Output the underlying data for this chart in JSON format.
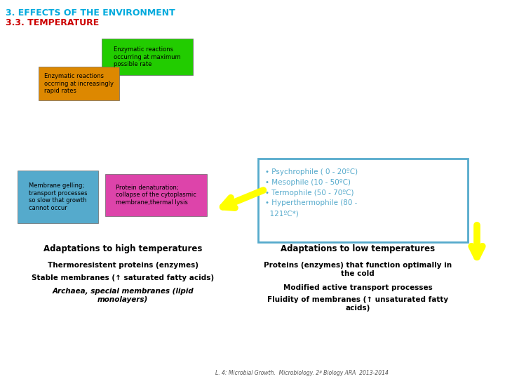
{
  "title1": "3. EFFECTS OF THE ENVIRONMENT",
  "title2": "3.3. TEMPERATURE",
  "title1_color": "#00AADD",
  "title2_color": "#CC0000",
  "bg_color": "#FFFFFF",
  "box_green_text": "Enzymatic reactions\noccurring at maximum\npossible rate",
  "box_green_color": "#22CC00",
  "box_yellow_text": "Enzymatic reactions\noccrring at increasingly\nrapid rates",
  "box_yellow_color": "#DD8800",
  "box_blue_left_text": "Membrane gelling;\ntransport processes\nso slow that growth\ncannot occur",
  "box_blue_color": "#55AACC",
  "box_pink_text": "Protein denaturation;\ncollapse of the cytoplasmic\nmembrane;thermal lysis",
  "box_pink_color": "#DD44AA",
  "box_right_text": "• Psychrophile ( 0 - 20ºC)\n• Mesophile (10 - 50ºC)\n• Termophile (50 - 70ºC)\n• Hyperthermophile (80 -\n  121ºC*)",
  "box_right_border_color": "#55AACC",
  "box_right_text_color": "#55AACC",
  "arrow_color": "#FFFF00",
  "adapt_high_text": "Adaptations to high temperatures",
  "adapt_low_text": "Adaptations to low temperatures",
  "thermo1": "Thermoresistent proteins (enzymes)",
  "thermo2": "Stable membranes (↑ saturated fatty acids)",
  "thermo3": "Archaea, special membranes (lipid\nmonolayers)",
  "low1": "Proteins (enzymes) that function optimally in\nthe cold",
  "low2": "Modified active transport processes",
  "low3": "Fluidity of membranes (↑ unsaturated fatty\nacids)",
  "footnote": "L. 4: Microbial Growth.  Microbiology. 2ª Biology ARA  2013-2014"
}
